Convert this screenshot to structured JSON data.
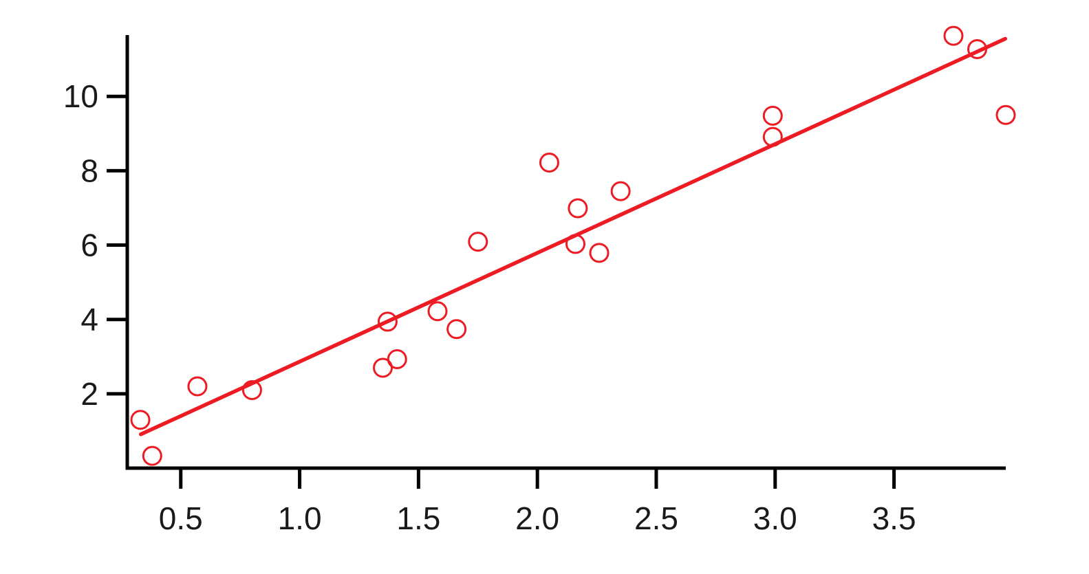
{
  "chart_data": {
    "type": "scatter",
    "title": "",
    "xlabel": "",
    "ylabel": "",
    "grid": false,
    "legend": null,
    "xlim": [
      0.275,
      3.97
    ],
    "ylim": [
      0,
      11.65
    ],
    "x_ticks": [
      0.5,
      1.0,
      1.5,
      2.0,
      2.5,
      3.0,
      3.5
    ],
    "x_tick_labels": [
      "0.5",
      "1.0",
      "1.5",
      "2.0",
      "2.5",
      "3.0",
      "3.5"
    ],
    "y_ticks": [
      2,
      4,
      6,
      8,
      10
    ],
    "y_tick_labels": [
      "2",
      "4",
      "6",
      "8",
      "10"
    ],
    "axis_color": "#000000",
    "tick_label_color": "#1a1a1a",
    "marker": "open-circle",
    "marker_color": "#ed1c24",
    "points": [
      [
        0.33,
        1.3
      ],
      [
        0.38,
        0.33
      ],
      [
        0.57,
        2.2
      ],
      [
        0.8,
        2.1
      ],
      [
        1.35,
        2.7
      ],
      [
        1.41,
        2.93
      ],
      [
        1.37,
        3.94
      ],
      [
        1.58,
        4.22
      ],
      [
        1.66,
        3.74
      ],
      [
        1.75,
        6.09
      ],
      [
        2.05,
        8.22
      ],
      [
        2.17,
        6.99
      ],
      [
        2.16,
        6.03
      ],
      [
        2.26,
        5.79
      ],
      [
        2.35,
        7.45
      ],
      [
        2.99,
        9.48
      ],
      [
        2.99,
        8.91
      ],
      [
        3.75,
        11.63
      ],
      [
        3.85,
        11.27
      ],
      [
        3.97,
        9.5
      ]
    ],
    "trend_line": {
      "type": "linear",
      "color": "#ed1c24",
      "x_start": 0.332,
      "y_start": 0.91,
      "x_end": 3.968,
      "y_end": 11.55,
      "slope": 2.93,
      "intercept": -0.06
    }
  }
}
